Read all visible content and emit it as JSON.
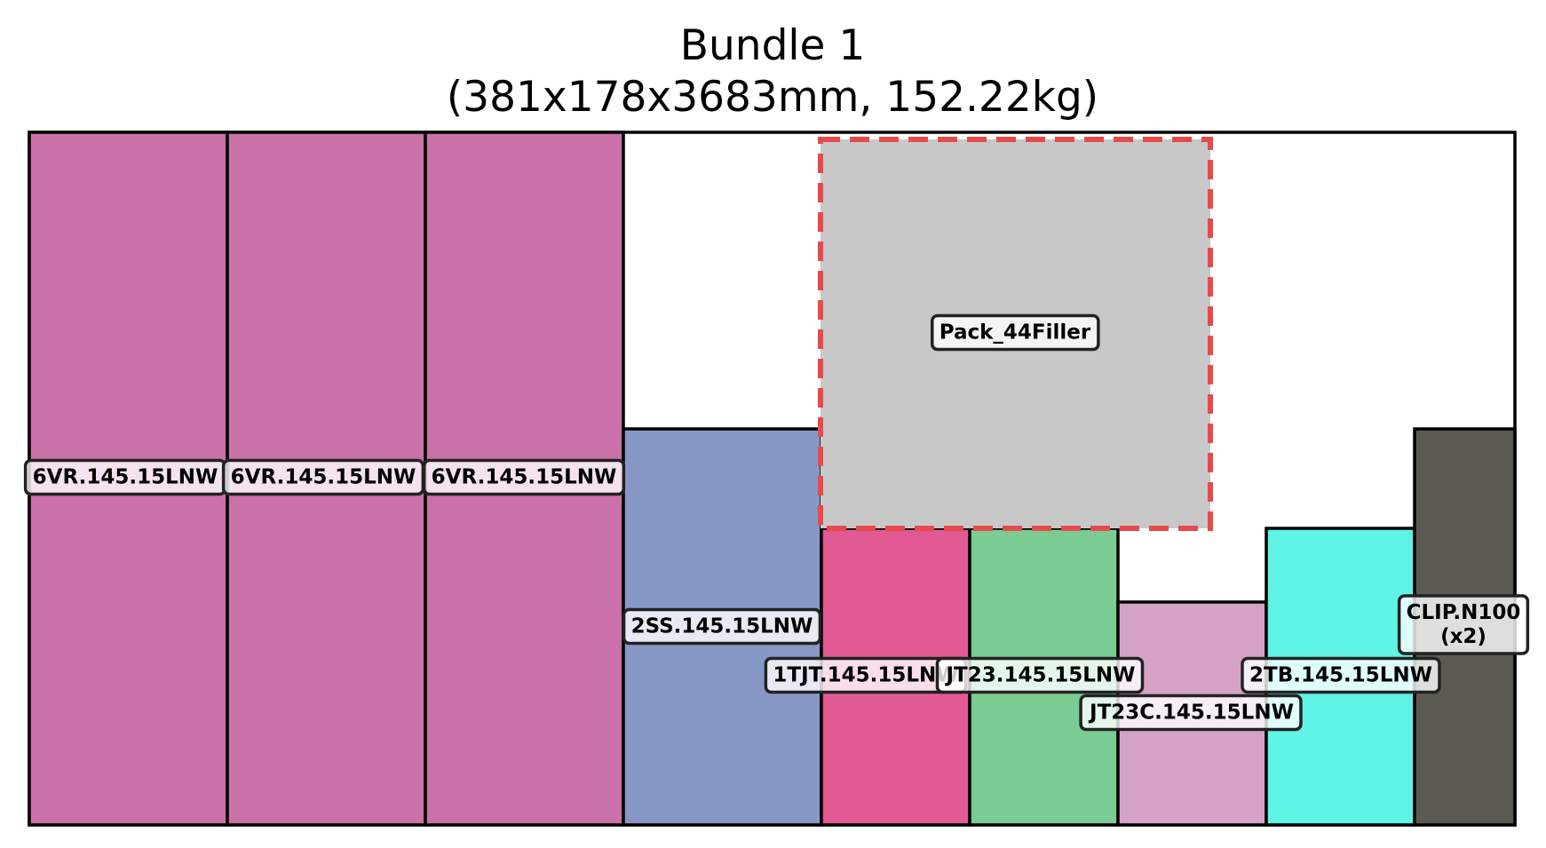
{
  "title_line1": "Bundle 1",
  "title_line2": "(381x178x3683mm, 152.22kg)",
  "colors": {
    "outline": "#000000",
    "filler_fill": "#c8c8c8",
    "filler_border": "#e84a4a"
  },
  "parts": [
    {
      "id": "part-6vr-1",
      "label": "6VR.145.15LNW",
      "color": "#c971a8"
    },
    {
      "id": "part-6vr-2",
      "label": "6VR.145.15LNW",
      "color": "#c971a8"
    },
    {
      "id": "part-6vr-3",
      "label": "6VR.145.15LNW",
      "color": "#c971a8"
    },
    {
      "id": "part-2ss",
      "label": "2SS.145.15LNW",
      "color": "#8898c6"
    },
    {
      "id": "part-1tjt",
      "label": "1TJT.145.15LNW",
      "color": "#e15a94"
    },
    {
      "id": "part-jt23",
      "label": "JT23.145.15LNW",
      "color": "#7acc92"
    },
    {
      "id": "part-jt23c",
      "label": "JT23C.145.15LNW",
      "color": "#d5a3c6"
    },
    {
      "id": "part-2tb",
      "label": "2TB.145.15LNW",
      "color": "#5ef4e6"
    },
    {
      "id": "part-clip",
      "label": "CLIP.N100",
      "label2": "(x2)",
      "color": "#5b5a52"
    }
  ],
  "filler": {
    "label": "Pack_44Filler"
  }
}
